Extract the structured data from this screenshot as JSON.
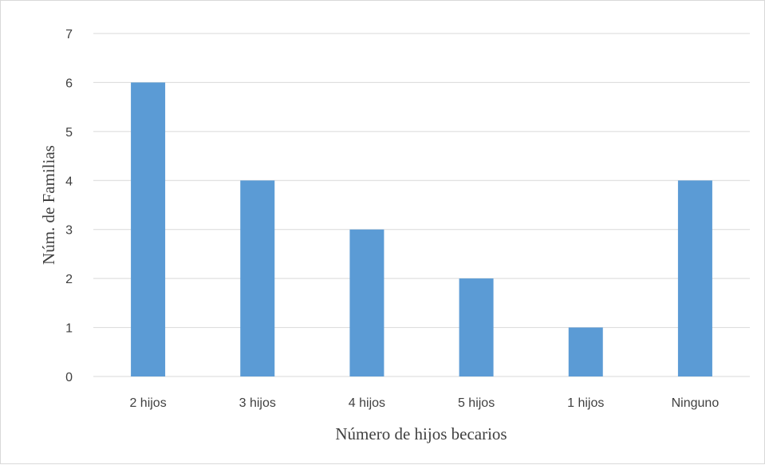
{
  "chart_data": {
    "type": "bar",
    "categories": [
      "2 hijos",
      "3 hijos",
      "4 hijos",
      "5 hijos",
      "1 hijos",
      "Ninguno"
    ],
    "series": [
      {
        "values": [
          6,
          4,
          3,
          2,
          1,
          4
        ]
      }
    ],
    "title": "",
    "xlabel": "Número de hijos becarios",
    "ylabel": "Núm. de Familias",
    "ylim": [
      0,
      7
    ],
    "yticks": [
      "0",
      "1",
      "2",
      "3",
      "4",
      "5",
      "6",
      "7"
    ],
    "grid": true,
    "legend": "none",
    "bar_color": "#5b9bd5",
    "grid_color": "#d9d9d9"
  }
}
